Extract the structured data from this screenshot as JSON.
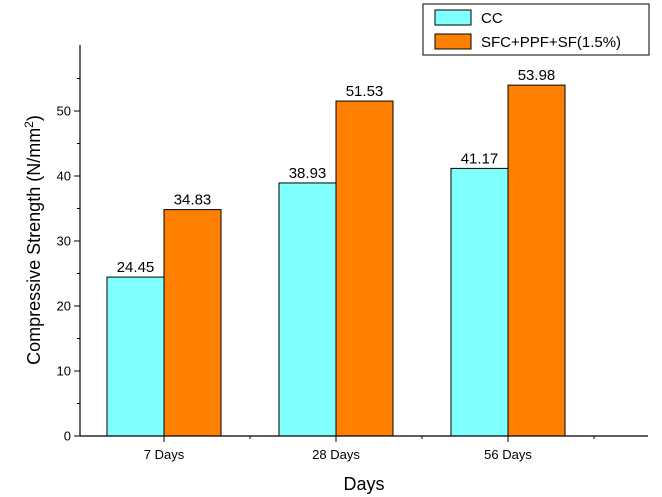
{
  "chart_data": {
    "type": "bar",
    "categories": [
      "7 Days",
      "28 Days",
      "56 Days"
    ],
    "series": [
      {
        "name": "CC",
        "values": [
          24.45,
          38.93,
          41.17
        ],
        "labels": [
          "24.45",
          "38.93",
          "41.17"
        ],
        "color": "#80FFFF"
      },
      {
        "name": "SFC+PPF+SF(1.5%)",
        "values": [
          34.83,
          51.53,
          53.98
        ],
        "labels": [
          "34.83",
          "51.53",
          "53.98"
        ],
        "color": "#FF8000"
      }
    ],
    "xlabel": "Days",
    "ylabel": "Compressive Strength (N/mm",
    "ylabel_sup": "2",
    "ylabel_close": ")",
    "ylim": [
      0,
      60
    ],
    "yticks": [
      0,
      10,
      20,
      30,
      40,
      50
    ],
    "ytick_labels": [
      "0",
      "10",
      "20",
      "30",
      "40",
      "50"
    ],
    "grid": false,
    "legend_position": "top-right"
  }
}
